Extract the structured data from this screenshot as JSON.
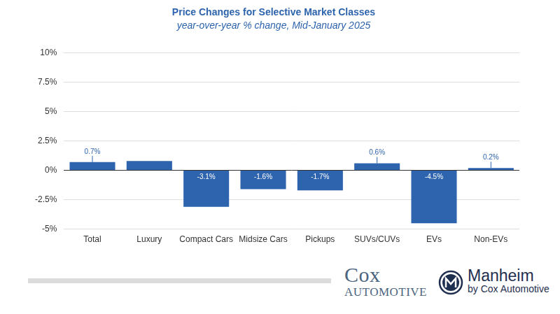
{
  "chart_data": {
    "type": "bar",
    "title": "Price Changes for Selective Market Classes",
    "subtitle": "year-over-year % change, Mid-January 2025",
    "categories": [
      "Total",
      "Luxury",
      "Compact Cars",
      "Midsize Cars",
      "Pickups",
      "SUVs/CUVs",
      "EVs",
      "Non-EVs"
    ],
    "values": [
      0.7,
      0.8,
      -3.1,
      -1.6,
      -1.7,
      0.6,
      -4.5,
      0.2
    ],
    "value_labels": [
      "0.7%",
      null,
      "-3.1%",
      "-1.6%",
      "-1.7%",
      "0.6%",
      "-4.5%",
      "0.2%"
    ],
    "color": "#2d64ad",
    "ylim": [
      -5,
      10
    ],
    "yticks": [
      {
        "value": -5,
        "label": "-5%"
      },
      {
        "value": -2.5,
        "label": "-2.5%"
      },
      {
        "value": 0,
        "label": "0%"
      },
      {
        "value": 2.5,
        "label": "2.5%"
      },
      {
        "value": 5,
        "label": "5%"
      },
      {
        "value": 7.5,
        "label": "7.5%"
      },
      {
        "value": 10,
        "label": "10%"
      }
    ],
    "grid": true,
    "data_labels": true,
    "logos": [
      {
        "lines": [
          "Cox",
          "AUTOMOTIVE"
        ]
      },
      {
        "lines": [
          "Manheim",
          "by Cox Automotive"
        ]
      }
    ]
  }
}
